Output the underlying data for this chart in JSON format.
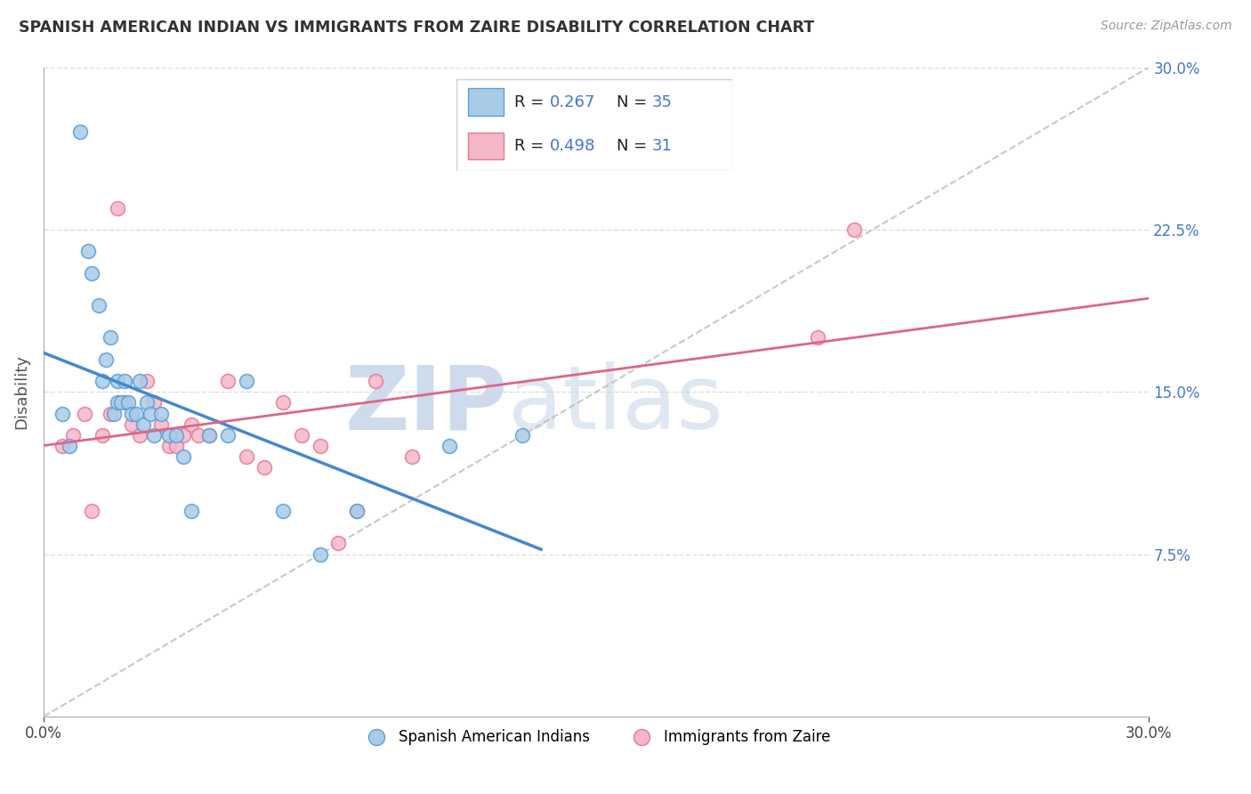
{
  "title": "SPANISH AMERICAN INDIAN VS IMMIGRANTS FROM ZAIRE DISABILITY CORRELATION CHART",
  "source": "Source: ZipAtlas.com",
  "ylabel": "Disability",
  "xlim": [
    0.0,
    0.3
  ],
  "ylim": [
    0.0,
    0.3
  ],
  "blue_R": 0.267,
  "blue_N": 35,
  "pink_R": 0.498,
  "pink_N": 31,
  "blue_color": "#a8cce8",
  "pink_color": "#f4b8c8",
  "blue_edge_color": "#5a9fd4",
  "pink_edge_color": "#e8789a",
  "blue_line_color": "#4488cc",
  "pink_line_color": "#dd6688",
  "dash_color": "#bbbbbb",
  "legend_label_blue": "Spanish American Indians",
  "legend_label_pink": "Immigrants from Zaire",
  "watermark_ZIP": "ZIP",
  "watermark_atlas": "atlas",
  "grid_color": "#dddddd",
  "blue_x": [
    0.005,
    0.007,
    0.01,
    0.012,
    0.013,
    0.015,
    0.016,
    0.017,
    0.018,
    0.019,
    0.02,
    0.02,
    0.021,
    0.022,
    0.023,
    0.024,
    0.025,
    0.026,
    0.027,
    0.028,
    0.029,
    0.03,
    0.032,
    0.034,
    0.036,
    0.038,
    0.04,
    0.045,
    0.05,
    0.055,
    0.065,
    0.075,
    0.085,
    0.11,
    0.13
  ],
  "blue_y": [
    0.14,
    0.125,
    0.27,
    0.215,
    0.205,
    0.19,
    0.155,
    0.165,
    0.175,
    0.14,
    0.155,
    0.145,
    0.145,
    0.155,
    0.145,
    0.14,
    0.14,
    0.155,
    0.135,
    0.145,
    0.14,
    0.13,
    0.14,
    0.13,
    0.13,
    0.12,
    0.095,
    0.13,
    0.13,
    0.155,
    0.095,
    0.075,
    0.095,
    0.125,
    0.13
  ],
  "pink_x": [
    0.005,
    0.008,
    0.011,
    0.013,
    0.016,
    0.018,
    0.02,
    0.022,
    0.024,
    0.026,
    0.028,
    0.03,
    0.032,
    0.034,
    0.036,
    0.038,
    0.04,
    0.042,
    0.045,
    0.05,
    0.055,
    0.06,
    0.065,
    0.07,
    0.075,
    0.08,
    0.085,
    0.09,
    0.1,
    0.21,
    0.22
  ],
  "pink_y": [
    0.125,
    0.13,
    0.14,
    0.095,
    0.13,
    0.14,
    0.235,
    0.145,
    0.135,
    0.13,
    0.155,
    0.145,
    0.135,
    0.125,
    0.125,
    0.13,
    0.135,
    0.13,
    0.13,
    0.155,
    0.12,
    0.115,
    0.145,
    0.13,
    0.125,
    0.08,
    0.095,
    0.155,
    0.12,
    0.175,
    0.225
  ],
  "blue_line_x_start": 0.0,
  "blue_line_x_end": 0.135,
  "pink_line_x_start": 0.0,
  "pink_line_x_end": 0.3
}
